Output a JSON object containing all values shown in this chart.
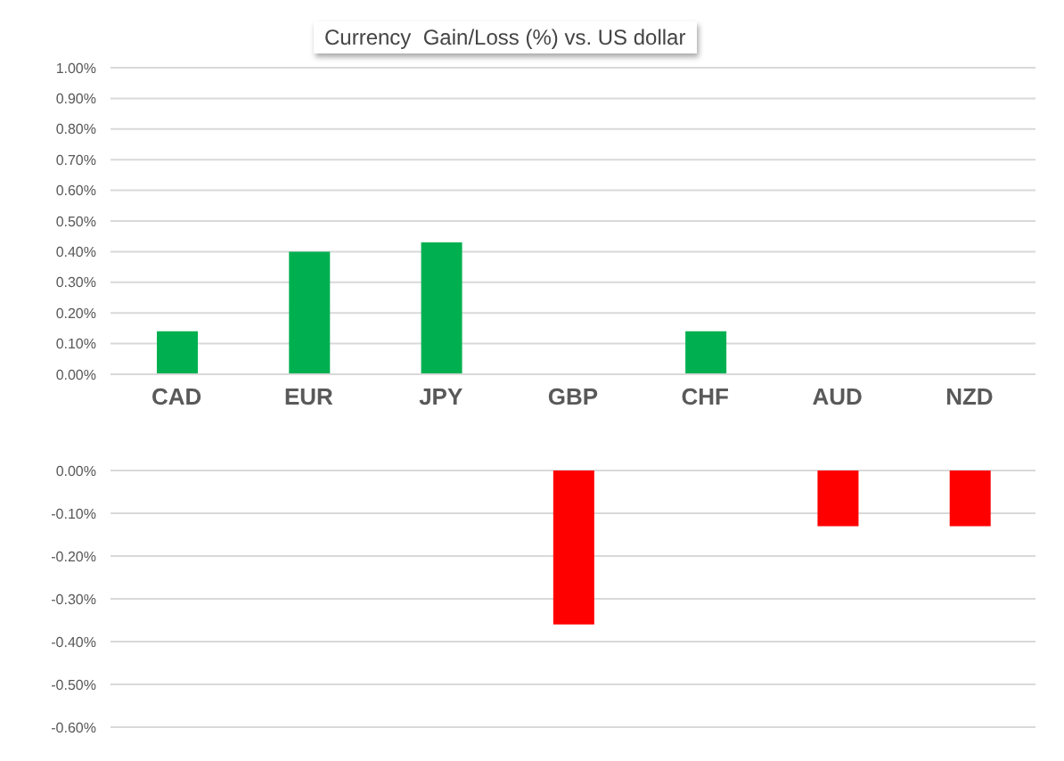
{
  "chart_data": [
    {
      "type": "bar",
      "title": "Currency  Gain/Loss (%) vs. US dollar",
      "categories": [
        "CAD",
        "EUR",
        "JPY",
        "GBP",
        "CHF",
        "AUD",
        "NZD"
      ],
      "series": [
        {
          "color": "#00b050",
          "values": [
            0.14,
            0.4,
            0.43,
            null,
            0.14,
            null,
            null
          ]
        }
      ],
      "ylim": [
        0,
        1
      ],
      "yticks": [
        {
          "value": 0,
          "label": "0.00%"
        },
        {
          "value": 0.1,
          "label": "0.10%"
        },
        {
          "value": 0.2,
          "label": "0.20%"
        },
        {
          "value": 0.3,
          "label": "0.30%"
        },
        {
          "value": 0.4,
          "label": "0.40%"
        },
        {
          "value": 0.5,
          "label": "0.50%"
        },
        {
          "value": 0.6,
          "label": "0.60%"
        },
        {
          "value": 0.7,
          "label": "0.70%"
        },
        {
          "value": 0.8,
          "label": "0.80%"
        },
        {
          "value": 0.9,
          "label": "0.90%"
        },
        {
          "value": 1,
          "label": "1.00%"
        }
      ],
      "grid": "y"
    },
    {
      "type": "bar",
      "categories": [
        null,
        null,
        null,
        null,
        null,
        null,
        null
      ],
      "series": [
        {
          "color": "#ff0000",
          "values": [
            null,
            null,
            null,
            -0.36,
            null,
            -0.13,
            -0.13
          ]
        }
      ],
      "ylim": [
        -0.6,
        0
      ],
      "yticks": [
        {
          "value": 0,
          "label": "0.00%"
        },
        {
          "value": -0.1,
          "label": "-0.10%"
        },
        {
          "value": -0.2,
          "label": "-0.20%"
        },
        {
          "value": -0.3,
          "label": "-0.30%"
        },
        {
          "value": -0.4,
          "label": "-0.40%"
        },
        {
          "value": -0.5,
          "label": "-0.50%"
        },
        {
          "value": -0.6,
          "label": "-0.60%"
        }
      ],
      "grid": "y",
      "tick_labels": "y"
    }
  ]
}
